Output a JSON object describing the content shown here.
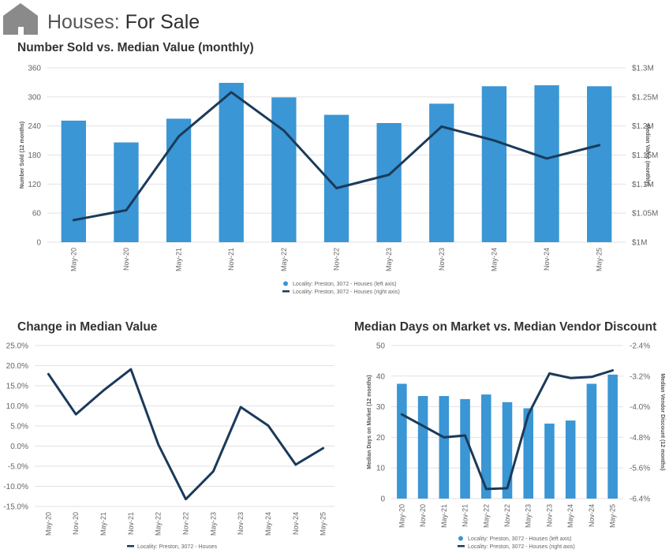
{
  "header": {
    "title_prefix": "Houses:",
    "title_main": "For Sale",
    "icon": "house-icon"
  },
  "colors": {
    "bar": "#3a96d4",
    "line": "#1b3a5b",
    "grid": "#e2e2e2",
    "icon_bg": "#8a8a8a"
  },
  "chart_data": [
    {
      "type": "bar+line",
      "title": "Number Sold vs. Median Value (monthly)",
      "categories": [
        "May-20",
        "Nov-20",
        "May-21",
        "Nov-21",
        "May-22",
        "Nov-22",
        "May-23",
        "Nov-23",
        "May-24",
        "Nov-24",
        "May-25"
      ],
      "left_axis": {
        "label": "Number Sold (12 months)",
        "range": [
          0,
          360
        ],
        "ticks": [
          0,
          60,
          120,
          180,
          240,
          300,
          360
        ],
        "tick_labels": [
          "0",
          "60",
          "120",
          "180",
          "240",
          "300",
          "360"
        ]
      },
      "right_axis": {
        "label": "Median Value (monthly)",
        "range": [
          1000000,
          1300000
        ],
        "ticks": [
          1000000,
          1050000,
          1100000,
          1150000,
          1200000,
          1250000,
          1300000
        ],
        "tick_labels": [
          "$1M",
          "$1.05M",
          "$1.1M",
          "$1.15M",
          "$1.2M",
          "$1.25M",
          "$1.3M"
        ]
      },
      "series": [
        {
          "name": "Locality: Preston, 3072 - Houses (left axis)",
          "kind": "bar",
          "axis": "left",
          "values": [
            251,
            206,
            255,
            329,
            299,
            263,
            246,
            286,
            322,
            324,
            322
          ]
        },
        {
          "name": "Locality: Preston, 3072 - Houses (right axis)",
          "kind": "line",
          "axis": "right",
          "values": [
            1038000,
            1055000,
            1182000,
            1258000,
            1192000,
            1093000,
            1116000,
            1199000,
            1175000,
            1144000,
            1167000
          ]
        }
      ]
    },
    {
      "type": "line",
      "title": "Change in Median Value",
      "categories": [
        "May-20",
        "Nov-20",
        "May-21",
        "Nov-21",
        "May-22",
        "Nov-22",
        "May-23",
        "Nov-23",
        "May-24",
        "Nov-24",
        "May-25"
      ],
      "y_axis": {
        "range": [
          -15,
          25
        ],
        "ticks": [
          -15,
          -10,
          -5,
          0,
          5,
          10,
          15,
          20,
          25
        ],
        "tick_labels": [
          "-15.0%",
          "-10.0%",
          "-5.0%",
          "0.0%",
          "5.0%",
          "10.0%",
          "15.0%",
          "20.0%",
          "25.0%"
        ]
      },
      "series": [
        {
          "name": "Locality: Preston, 3072 - Houses",
          "kind": "line",
          "values": [
            17.9,
            7.9,
            13.8,
            19.1,
            0.4,
            -13.2,
            -6.3,
            9.7,
            5.1,
            -4.6,
            -0.5
          ]
        }
      ]
    },
    {
      "type": "bar+line",
      "title": "Median Days on Market vs. Median Vendor Discount",
      "categories": [
        "May-20",
        "Nov-20",
        "May-21",
        "Nov-21",
        "May-22",
        "Nov-22",
        "May-23",
        "Nov-23",
        "May-24",
        "Nov-24",
        "May-25"
      ],
      "left_axis": {
        "label": "Median Days on Market (12 months)",
        "range": [
          0,
          50
        ],
        "ticks": [
          0,
          10,
          20,
          30,
          40,
          50
        ],
        "tick_labels": [
          "0",
          "10",
          "20",
          "30",
          "40",
          "50"
        ]
      },
      "right_axis": {
        "label": "Median Vendor Discount (12 months)",
        "range": [
          -6.4,
          -2.4
        ],
        "ticks": [
          -6.4,
          -5.6,
          -4.8,
          -4.0,
          -3.2,
          -2.4
        ],
        "tick_labels": [
          "-6.4%",
          "-5.6%",
          "-4.8%",
          "-4.0%",
          "-3.2%",
          "-2.4%"
        ]
      },
      "series": [
        {
          "name": "Locality: Preston, 3072 - Houses (left axis)",
          "kind": "bar",
          "axis": "left",
          "values": [
            37.5,
            33.5,
            33.5,
            32.5,
            34,
            31.5,
            29.5,
            24.5,
            25.5,
            37.5,
            40.5
          ]
        },
        {
          "name": "Locality: Preston, 3072 - Houses (right axis)",
          "kind": "line",
          "axis": "right",
          "values": [
            -4.2,
            -4.5,
            -4.8,
            -4.75,
            -6.15,
            -6.13,
            -4.2,
            -3.13,
            -3.25,
            -3.22,
            -3.05
          ]
        }
      ]
    }
  ]
}
